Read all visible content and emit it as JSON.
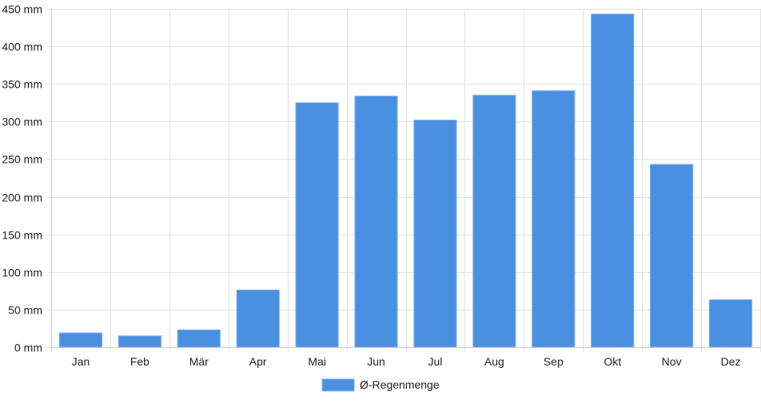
{
  "chart_data": {
    "type": "bar",
    "categories": [
      "Jan",
      "Feb",
      "Mär",
      "Apr",
      "Mai",
      "Jun",
      "Jul",
      "Aug",
      "Sep",
      "Okt",
      "Nov",
      "Dez"
    ],
    "series": [
      {
        "name": "Ø-Regenmenge",
        "values": [
          19,
          15,
          23,
          76,
          325,
          334,
          302,
          335,
          341,
          443,
          243,
          63
        ]
      }
    ],
    "ylim": [
      0,
      450
    ],
    "yticks": [
      0,
      50,
      100,
      150,
      200,
      250,
      300,
      350,
      400,
      450
    ],
    "ytick_suffix": " mm",
    "grid": true,
    "legend": "bottom-center",
    "colors": {
      "bar": "#4a90e2",
      "bar_border": "#7fb2ee"
    }
  }
}
